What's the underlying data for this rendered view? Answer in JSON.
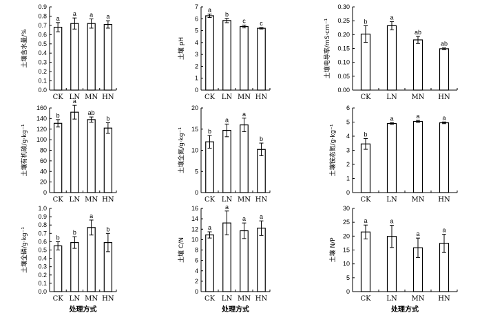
{
  "colors": {
    "bar_fill": "#ffffff",
    "stroke": "#000000"
  },
  "chart_data": [
    {
      "type": "bar",
      "categories": [
        "CK",
        "LN",
        "MN",
        "HN"
      ],
      "values": [
        0.68,
        0.72,
        0.72,
        0.71
      ],
      "errors": [
        0.05,
        0.06,
        0.05,
        0.04
      ],
      "sig": [
        "a",
        "a",
        "a",
        "a"
      ],
      "ylabel": "土壤含水量/%",
      "xlabel": "",
      "ylim": [
        0,
        0.9
      ],
      "yticks": [
        0,
        0.1,
        0.2,
        0.3,
        0.4,
        0.5,
        0.6,
        0.7,
        0.8,
        0.9
      ]
    },
    {
      "type": "bar",
      "categories": [
        "CK",
        "LN",
        "MN",
        "HN"
      ],
      "values": [
        6.25,
        5.85,
        5.35,
        5.2
      ],
      "errors": [
        0.15,
        0.18,
        0.12,
        0.06
      ],
      "sig": [
        "a",
        "b",
        "c",
        "c"
      ],
      "ylabel": "土壤 pH",
      "xlabel": "",
      "ylim": [
        0,
        7
      ],
      "yticks": [
        0,
        1,
        2,
        3,
        4,
        5,
        6,
        7
      ]
    },
    {
      "type": "bar",
      "categories": [
        "CK",
        "LN",
        "MN",
        "HN"
      ],
      "values": [
        0.202,
        0.232,
        0.181,
        0.149
      ],
      "errors": [
        0.03,
        0.015,
        0.013,
        0.003
      ],
      "sig": [
        "b",
        "a",
        "ab",
        "ab"
      ],
      "ylabel": "土壤电导率/mS·cm⁻¹",
      "xlabel": "",
      "ylim": [
        0,
        0.3
      ],
      "yticks": [
        0,
        0.05,
        0.1,
        0.15,
        0.2,
        0.25,
        0.3
      ]
    },
    {
      "type": "bar",
      "categories": [
        "CK",
        "LN",
        "MN",
        "HN"
      ],
      "values": [
        131,
        152,
        138,
        122
      ],
      "errors": [
        7,
        13,
        5,
        10
      ],
      "sig": [
        "b",
        "a",
        "ab",
        "b"
      ],
      "ylabel": "土壤有机碳/g·kg⁻¹",
      "xlabel": "",
      "ylim": [
        0,
        160
      ],
      "yticks": [
        0,
        20,
        40,
        60,
        80,
        100,
        120,
        140,
        160
      ]
    },
    {
      "type": "bar",
      "categories": [
        "CK",
        "LN",
        "MN",
        "HN"
      ],
      "values": [
        12.0,
        14.7,
        16.0,
        10.2
      ],
      "errors": [
        1.5,
        1.5,
        1.6,
        1.5
      ],
      "sig": [
        "b",
        "a",
        "a",
        "b"
      ],
      "ylabel": "土壤全氮/g·kg⁻¹",
      "xlabel": "",
      "ylim": [
        0,
        20
      ],
      "yticks": [
        0,
        5,
        10,
        15,
        20
      ]
    },
    {
      "type": "bar",
      "categories": [
        "CK",
        "LN",
        "MN",
        "HN"
      ],
      "values": [
        3.45,
        4.9,
        5.05,
        4.95
      ],
      "errors": [
        0.38,
        0.06,
        0.07,
        0.06
      ],
      "sig": [
        "b",
        "a",
        "a",
        "a"
      ],
      "ylabel": "土壤铵态氮/g·kg⁻¹",
      "xlabel": "",
      "ylim": [
        0,
        6
      ],
      "yticks": [
        0,
        1,
        2,
        3,
        4,
        5,
        6
      ]
    },
    {
      "type": "bar",
      "categories": [
        "CK",
        "LN",
        "MN",
        "HN"
      ],
      "values": [
        0.55,
        0.59,
        0.77,
        0.59
      ],
      "errors": [
        0.05,
        0.07,
        0.09,
        0.11
      ],
      "sig": [
        "b",
        "b",
        "a",
        "b"
      ],
      "ylabel": "土壤全磷/g·kg⁻¹",
      "xlabel": "处理方式",
      "ylim": [
        0,
        1.0
      ],
      "yticks": [
        0,
        0.1,
        0.2,
        0.3,
        0.4,
        0.5,
        0.6,
        0.7,
        0.8,
        0.9,
        1.0
      ]
    },
    {
      "type": "bar",
      "categories": [
        "CK",
        "LN",
        "MN",
        "HN"
      ],
      "values": [
        10.9,
        13.2,
        11.7,
        12.2
      ],
      "errors": [
        0.6,
        2.3,
        1.5,
        1.4
      ],
      "sig": [
        "a",
        "a",
        "a",
        "a"
      ],
      "ylabel": "土壤 C/N",
      "xlabel": "处理方式",
      "ylim": [
        0,
        16
      ],
      "yticks": [
        0,
        2,
        4,
        6,
        8,
        10,
        12,
        14,
        16
      ]
    },
    {
      "type": "bar",
      "categories": [
        "CK",
        "LN",
        "MN",
        "HN"
      ],
      "values": [
        21.5,
        19.9,
        15.8,
        17.4
      ],
      "errors": [
        2.5,
        4.0,
        3.5,
        3.3
      ],
      "sig": [
        "a",
        "a",
        "a",
        "a"
      ],
      "ylabel": "土壤 N/P",
      "xlabel": "处理方式",
      "ylim": [
        0,
        30
      ],
      "yticks": [
        0,
        5,
        10,
        15,
        20,
        25,
        30
      ]
    }
  ]
}
